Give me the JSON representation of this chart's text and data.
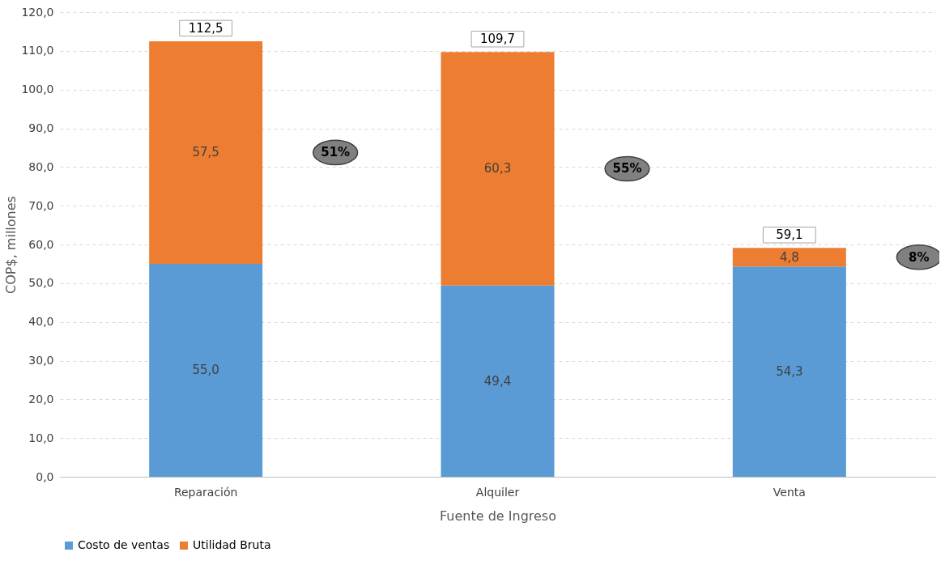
{
  "chart_data": {
    "type": "bar",
    "stacked": true,
    "xlabel": "Fuente de Ingreso",
    "ylabel": "COP$, millones",
    "categories": [
      "Reparación",
      "Alquiler",
      "Venta"
    ],
    "series": [
      {
        "name": "Costo de ventas",
        "color": "#5b9bd5",
        "values": [
          55.0,
          49.4,
          54.3
        ],
        "value_labels": [
          "55,0",
          "49,4",
          "54,3"
        ]
      },
      {
        "name": "Utilidad Bruta",
        "color": "#ed7d31",
        "values": [
          57.5,
          60.3,
          4.8
        ],
        "value_labels": [
          "57,5",
          "60,3",
          "4,8"
        ]
      }
    ],
    "totals": [
      "112,5",
      "109,7",
      "59,1"
    ],
    "annotations": [
      "51%",
      "55%",
      "8%"
    ],
    "ylim": [
      0,
      120
    ],
    "yticks": [
      {
        "value": 0,
        "label": "0,0"
      },
      {
        "value": 10,
        "label": "10,0"
      },
      {
        "value": 20,
        "label": "20,0"
      },
      {
        "value": 30,
        "label": "30,0"
      },
      {
        "value": 40,
        "label": "40,0"
      },
      {
        "value": 50,
        "label": "50,0"
      },
      {
        "value": 60,
        "label": "60,0"
      },
      {
        "value": 70,
        "label": "70,0"
      },
      {
        "value": 80,
        "label": "80,0"
      },
      {
        "value": 90,
        "label": "90,0"
      },
      {
        "value": 100,
        "label": "100,0"
      },
      {
        "value": 110,
        "label": "110,0"
      },
      {
        "value": 120,
        "label": "120,0"
      }
    ],
    "grid": "y",
    "legend": "bottom"
  }
}
